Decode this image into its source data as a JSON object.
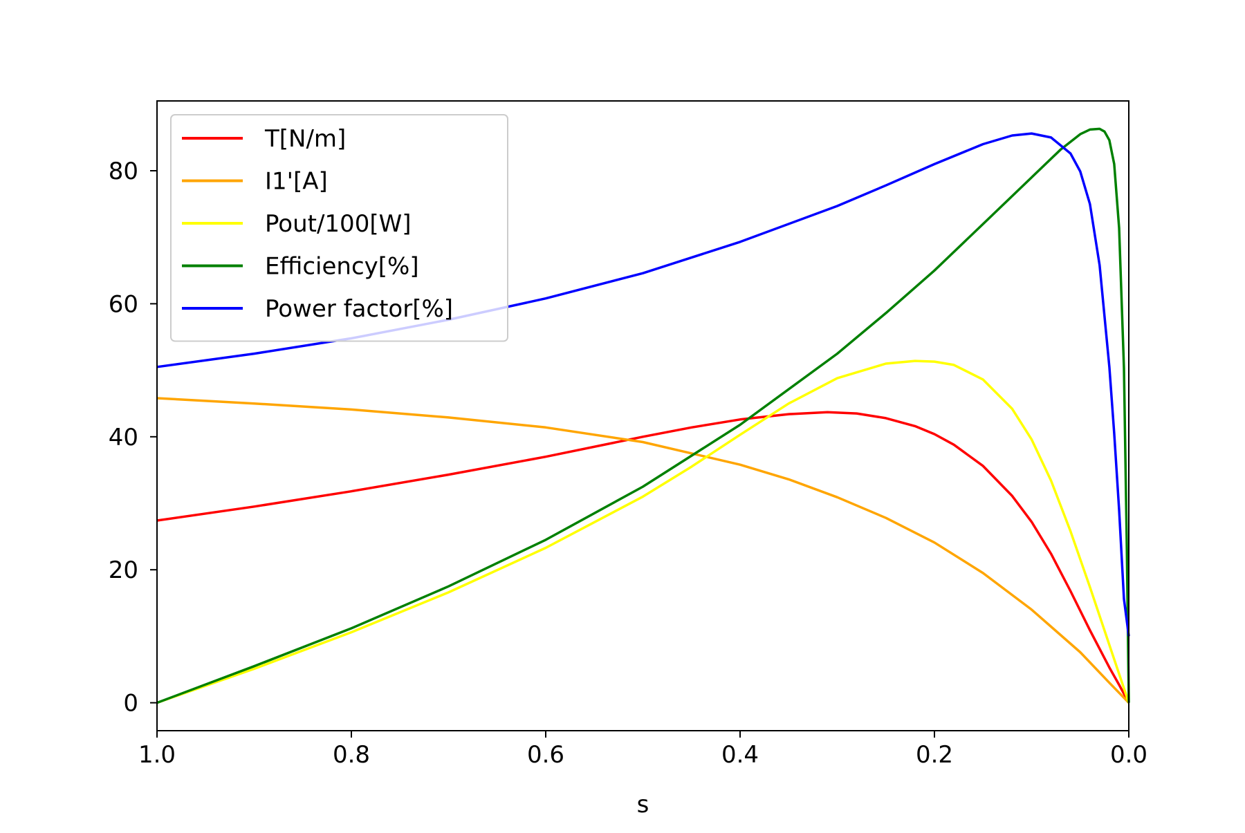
{
  "chart_data": {
    "type": "line",
    "title": "",
    "xlabel": "s",
    "ylabel": "",
    "xlim": [
      1.0,
      0.0
    ],
    "ylim": [
      -4.2,
      90.5
    ],
    "x_inverted": true,
    "grid": false,
    "legend_position": "upper-left",
    "xticks": [
      {
        "value": 1.0,
        "label": "1.0"
      },
      {
        "value": 0.8,
        "label": "0.8"
      },
      {
        "value": 0.6,
        "label": "0.6"
      },
      {
        "value": 0.4,
        "label": "0.4"
      },
      {
        "value": 0.2,
        "label": "0.2"
      },
      {
        "value": 0.0,
        "label": "0.0"
      }
    ],
    "yticks": [
      {
        "value": 0,
        "label": "0"
      },
      {
        "value": 20,
        "label": "20"
      },
      {
        "value": 40,
        "label": "40"
      },
      {
        "value": 60,
        "label": "60"
      },
      {
        "value": 80,
        "label": "80"
      }
    ],
    "series": [
      {
        "name": "T[N/m]",
        "color": "#ff0000",
        "x": [
          1.0,
          0.9,
          0.8,
          0.7,
          0.6,
          0.5,
          0.45,
          0.4,
          0.35,
          0.31,
          0.28,
          0.25,
          0.22,
          0.2,
          0.18,
          0.15,
          0.12,
          0.1,
          0.08,
          0.06,
          0.04,
          0.02,
          0.01,
          0.0
        ],
        "y": [
          27.4,
          29.5,
          31.8,
          34.3,
          37.0,
          40.0,
          41.4,
          42.6,
          43.4,
          43.7,
          43.5,
          42.8,
          41.6,
          40.4,
          38.8,
          35.6,
          31.1,
          27.2,
          22.4,
          16.8,
          10.9,
          5.3,
          2.7,
          0.0
        ]
      },
      {
        "name": "I1'[A]",
        "color": "#ffa500",
        "x": [
          1.0,
          0.9,
          0.8,
          0.7,
          0.6,
          0.5,
          0.4,
          0.35,
          0.3,
          0.25,
          0.2,
          0.15,
          0.1,
          0.05,
          0.02,
          0.0
        ],
        "y": [
          45.8,
          45.0,
          44.1,
          42.9,
          41.4,
          39.2,
          35.8,
          33.6,
          30.9,
          27.8,
          24.1,
          19.5,
          14.0,
          7.6,
          3.0,
          0.0
        ]
      },
      {
        "name": "Pout/100[W]",
        "color": "#ffff00",
        "x": [
          1.0,
          0.9,
          0.8,
          0.7,
          0.6,
          0.5,
          0.45,
          0.4,
          0.35,
          0.3,
          0.25,
          0.22,
          0.2,
          0.18,
          0.15,
          0.12,
          0.1,
          0.08,
          0.06,
          0.04,
          0.02,
          0.0
        ],
        "y": [
          0.0,
          5.1,
          10.6,
          16.6,
          23.3,
          31.0,
          35.5,
          40.3,
          45.0,
          48.8,
          51.0,
          51.4,
          51.3,
          50.8,
          48.6,
          44.2,
          39.6,
          33.4,
          25.8,
          17.4,
          8.7,
          0.0
        ]
      },
      {
        "name": "Efficiency[%]",
        "color": "#008000",
        "x": [
          1.0,
          0.9,
          0.8,
          0.7,
          0.6,
          0.5,
          0.4,
          0.3,
          0.25,
          0.2,
          0.15,
          0.1,
          0.07,
          0.05,
          0.04,
          0.03,
          0.025,
          0.02,
          0.015,
          0.01,
          0.005,
          0.002,
          0.0
        ],
        "y": [
          0.0,
          5.5,
          11.2,
          17.5,
          24.5,
          32.5,
          41.8,
          52.5,
          58.6,
          65.0,
          72.0,
          79.0,
          83.2,
          85.5,
          86.2,
          86.3,
          85.9,
          84.6,
          81.0,
          71.4,
          50.3,
          23.0,
          0.0
        ]
      },
      {
        "name": "Power factor[%]",
        "color": "#0000ff",
        "x": [
          1.0,
          0.9,
          0.8,
          0.7,
          0.6,
          0.5,
          0.4,
          0.3,
          0.25,
          0.2,
          0.15,
          0.12,
          0.1,
          0.08,
          0.06,
          0.05,
          0.04,
          0.03,
          0.02,
          0.015,
          0.01,
          0.005,
          0.0
        ],
        "y": [
          50.5,
          52.5,
          54.8,
          57.6,
          60.8,
          64.6,
          69.3,
          74.7,
          77.8,
          81.0,
          84.0,
          85.3,
          85.6,
          85.0,
          82.6,
          79.9,
          75.0,
          65.8,
          50.5,
          40.5,
          29.0,
          15.6,
          10.0
        ]
      }
    ]
  }
}
